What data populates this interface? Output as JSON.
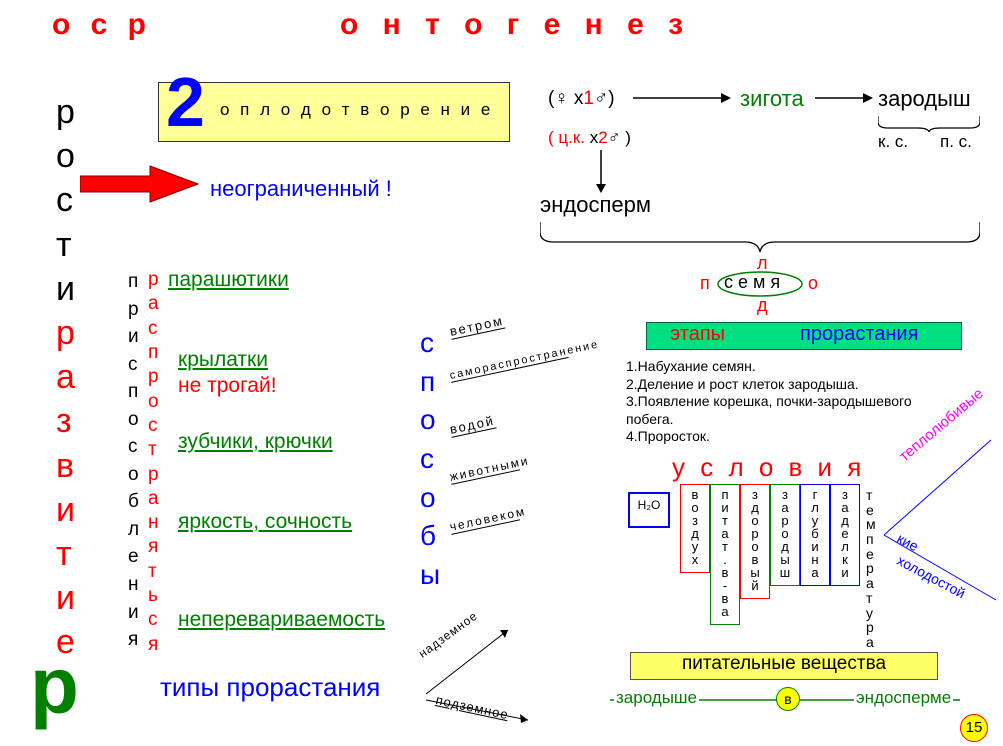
{
  "title_left": "о с р",
  "title_right": "о н т о г е н е з",
  "left_vertical": [
    "р",
    "о",
    "с",
    "т",
    "и",
    "р",
    "а",
    "з",
    "в",
    "и",
    "т",
    "и",
    "е"
  ],
  "left_r": "р",
  "box_number": "2",
  "box_label": "о п л о д о т в о р е н и е",
  "box_bg": "#ffff99",
  "box_border": "#333333",
  "unlimited": "неограниченный !",
  "endosperm": "эндосперм",
  "formula1_a": "(♀ x",
  "formula1_b": "1",
  "formula1_c": "♂)",
  "formula2_a": "( ц.к.",
  "formula2_b": "x",
  "formula2_c": "2",
  "formula2_d": "♂ )",
  "zygote": "зигота",
  "embryo": "зародыш",
  "ks": "к. с.",
  "ps": "п. с.",
  "seed_letters": {
    "l": "л",
    "p": "п",
    "o": "о",
    "d": "д"
  },
  "seed": "с е м я",
  "stages_box": {
    "left": "этапы",
    "right": "прорастания",
    "bg": "#00e080"
  },
  "stages": [
    "1.Набухание семян.",
    "2.Деление и рост клеток зародыша.",
    "3.Появление корешка, почки-зародышевого",
    "побега.",
    "4.Проросток."
  ],
  "conditions_title": "у с л о в и я",
  "h2o": "H₂O",
  "cond_cols": [
    {
      "text": "в о з д у х",
      "border": "#ff0000"
    },
    {
      "text": "п и т а т. в-в а",
      "border": "#008000"
    },
    {
      "text": "з д о р о в ы й",
      "border": "#ff0000"
    },
    {
      "text": "з а р о д ы ш",
      "border": "#008000"
    },
    {
      "text": "г л у б и н а",
      "border": "#0000ff"
    },
    {
      "text": "з а д е л к и",
      "border": "#0000ff"
    }
  ],
  "temp_col": "т е м п е р а т у р а",
  "temp_up": "теплолюбивые",
  "temp_down_a": "кие",
  "temp_down_b": "холодостой",
  "nutrients_box": "питательные вещества",
  "nutrients_left": "зародыше",
  "nutrients_right": "эндосперме",
  "nutrients_v": "в",
  "page": "15",
  "prefix_col": [
    "п",
    "р",
    "и",
    "с",
    "п",
    "о",
    "с",
    "о",
    "б",
    "л",
    "е",
    "н",
    "и",
    "я"
  ],
  "mid_col": [
    "р",
    "а",
    "с",
    "п",
    "р",
    "о",
    "с",
    "т",
    "р",
    "а",
    "н",
    "я",
    "т",
    "ь",
    "с",
    "я"
  ],
  "adapt": [
    "парашютики",
    "крылатки",
    "не трогай!",
    "зубчики, крючки",
    "яркость, сочность",
    "неперевариваемость"
  ],
  "ways_title": "с п о с о б ы",
  "ways": [
    "ветром",
    "самораспространение",
    "водой",
    "животными",
    "человеком"
  ],
  "types_title": "типы прорастания",
  "types": [
    "надземное",
    "подземное"
  ]
}
